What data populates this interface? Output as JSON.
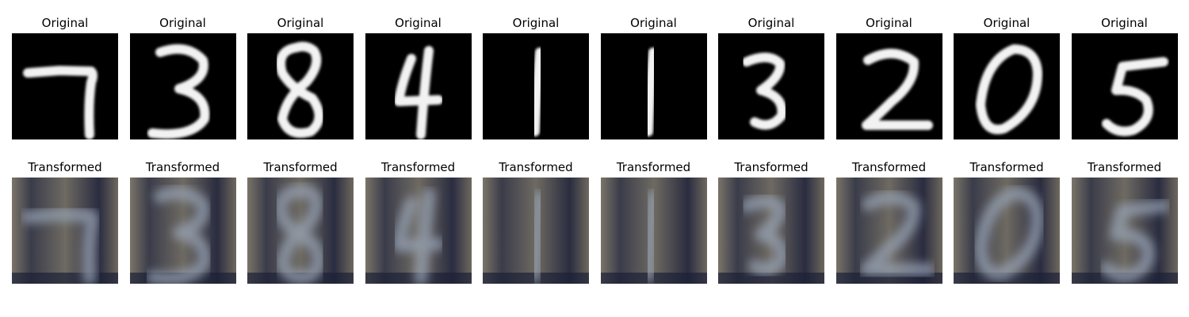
{
  "rows": [
    {
      "caption": "Original",
      "panels": [
        {
          "digit": "7"
        },
        {
          "digit": "3"
        },
        {
          "digit": "8"
        },
        {
          "digit": "4"
        },
        {
          "digit": "1"
        },
        {
          "digit": "1"
        },
        {
          "digit": "3"
        },
        {
          "digit": "2"
        },
        {
          "digit": "0"
        },
        {
          "digit": "5"
        }
      ]
    },
    {
      "caption": "Transformed",
      "panels": [
        {
          "digit": "7"
        },
        {
          "digit": "3"
        },
        {
          "digit": "8"
        },
        {
          "digit": "4"
        },
        {
          "digit": "1"
        },
        {
          "digit": "1"
        },
        {
          "digit": "3"
        },
        {
          "digit": "2"
        },
        {
          "digit": "0"
        },
        {
          "digit": "5"
        }
      ]
    }
  ],
  "colors": {
    "original_background": "#000000",
    "original_stroke": "#f2f2f2",
    "transformed_background": "#6e6a62",
    "transformed_dark": "#1d2136",
    "transformed_stroke": "#9aa6b8"
  }
}
